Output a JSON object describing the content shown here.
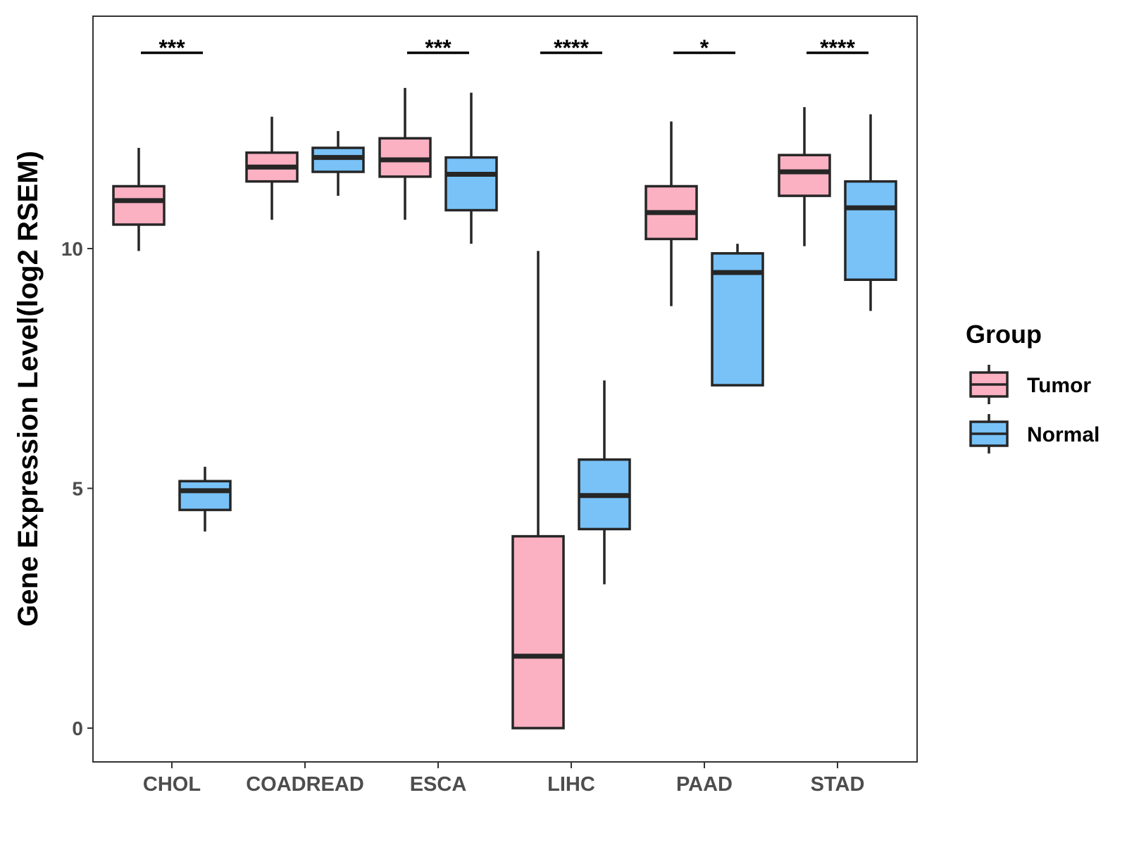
{
  "chart_data": {
    "type": "boxplot",
    "title": "",
    "xlabel": "",
    "ylabel": "Gene Expression Level(log2 RSEM)",
    "ylim": [
      -0.7,
      15.1
    ],
    "yticks": [
      0,
      5,
      10
    ],
    "categories": [
      "CHOL",
      "COADREAD",
      "ESCA",
      "LIHC",
      "PAAD",
      "STAD"
    ],
    "legend": {
      "title": "Group",
      "position": "right",
      "items": [
        {
          "name": "Tumor",
          "color": "#FBB1C2"
        },
        {
          "name": "Normal",
          "color": "#78C2F8"
        }
      ]
    },
    "series": [
      {
        "name": "Tumor",
        "color": "#FBB1C2",
        "boxes": [
          {
            "category": "CHOL",
            "whisker_low": 9.95,
            "q1": 10.5,
            "median": 11.0,
            "q3": 11.3,
            "whisker_high": 12.1
          },
          {
            "category": "COADREAD",
            "whisker_low": 10.6,
            "q1": 11.4,
            "median": 11.7,
            "q3": 12.0,
            "whisker_high": 12.75
          },
          {
            "category": "ESCA",
            "whisker_low": 10.6,
            "q1": 11.5,
            "median": 11.85,
            "q3": 12.3,
            "whisker_high": 13.35
          },
          {
            "category": "LIHC",
            "whisker_low": 0.0,
            "q1": 0.0,
            "median": 1.5,
            "q3": 4.0,
            "whisker_high": 9.95
          },
          {
            "category": "PAAD",
            "whisker_low": 8.8,
            "q1": 10.2,
            "median": 10.75,
            "q3": 11.3,
            "whisker_high": 12.65
          },
          {
            "category": "STAD",
            "whisker_low": 10.05,
            "q1": 11.1,
            "median": 11.6,
            "q3": 11.95,
            "whisker_high": 12.95
          }
        ]
      },
      {
        "name": "Normal",
        "color": "#78C2F8",
        "boxes": [
          {
            "category": "CHOL",
            "whisker_low": 4.1,
            "q1": 4.55,
            "median": 4.95,
            "q3": 5.15,
            "whisker_high": 5.45
          },
          {
            "category": "COADREAD",
            "whisker_low": 11.1,
            "q1": 11.6,
            "median": 11.9,
            "q3": 12.1,
            "whisker_high": 12.45
          },
          {
            "category": "ESCA",
            "whisker_low": 10.1,
            "q1": 10.8,
            "median": 11.55,
            "q3": 11.9,
            "whisker_high": 13.25
          },
          {
            "category": "LIHC",
            "whisker_low": 3.0,
            "q1": 4.15,
            "median": 4.85,
            "q3": 5.6,
            "whisker_high": 7.25
          },
          {
            "category": "PAAD",
            "whisker_low": 7.15,
            "q1": 7.15,
            "median": 9.5,
            "q3": 9.9,
            "whisker_high": 10.1
          },
          {
            "category": "STAD",
            "whisker_low": 8.7,
            "q1": 9.35,
            "median": 10.85,
            "q3": 11.4,
            "whisker_high": 12.8
          }
        ]
      }
    ],
    "annotations": [
      {
        "category": "CHOL",
        "label": "***"
      },
      {
        "category": "ESCA",
        "label": "***"
      },
      {
        "category": "LIHC",
        "label": "****"
      },
      {
        "category": "PAAD",
        "label": "*"
      },
      {
        "category": "STAD",
        "label": "****"
      }
    ]
  }
}
